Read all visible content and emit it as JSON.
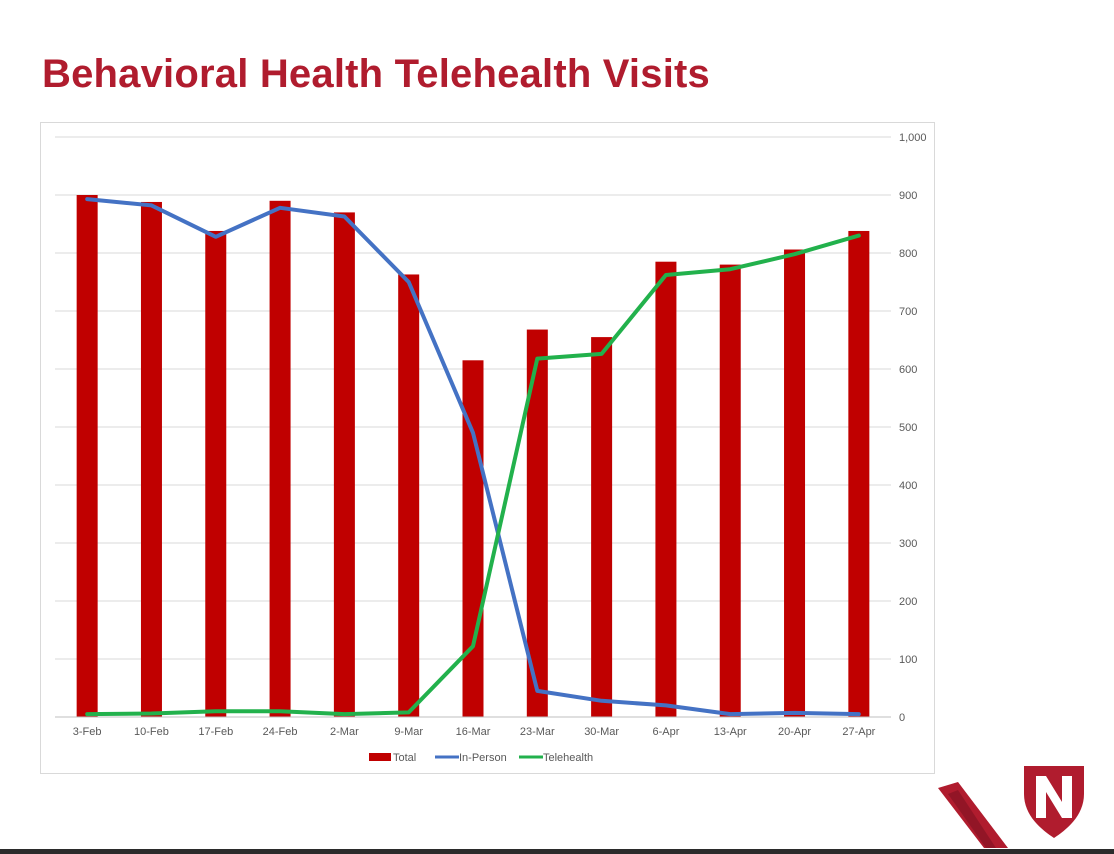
{
  "slide": {
    "title": "Behavioral Health Telehealth Visits"
  },
  "colors": {
    "title": "#b01c2e",
    "total": "#c00000",
    "in_person": "#4472c4",
    "telehealth": "#22b14c",
    "grid": "#d9d9d9",
    "axis_text": "#595959"
  },
  "chart_data": {
    "type": "bar",
    "title": "",
    "xlabel": "",
    "ylabel": "",
    "categories": [
      "3-Feb",
      "10-Feb",
      "17-Feb",
      "24-Feb",
      "2-Mar",
      "9-Mar",
      "16-Mar",
      "23-Mar",
      "30-Mar",
      "6-Apr",
      "13-Apr",
      "20-Apr",
      "27-Apr"
    ],
    "ylim": [
      0,
      1000
    ],
    "y_ticks": [
      0,
      100,
      200,
      300,
      400,
      500,
      600,
      700,
      800,
      900,
      1000
    ],
    "y_tick_labels": [
      "0",
      "100",
      "200",
      "300",
      "400",
      "500",
      "600",
      "700",
      "800",
      "900",
      "1,000"
    ],
    "y_axis_side": "right",
    "grid": true,
    "legend_position": "bottom",
    "series": [
      {
        "name": "Total",
        "kind": "bar",
        "values": [
          900,
          888,
          838,
          890,
          870,
          763,
          615,
          668,
          655,
          785,
          780,
          806,
          838
        ]
      },
      {
        "name": "In-Person",
        "kind": "line",
        "values": [
          893,
          882,
          828,
          878,
          863,
          750,
          490,
          45,
          28,
          20,
          5,
          7,
          5
        ]
      },
      {
        "name": "Telehealth",
        "kind": "line",
        "values": [
          5,
          6,
          10,
          10,
          5,
          8,
          122,
          618,
          626,
          762,
          772,
          798,
          830
        ]
      }
    ]
  }
}
